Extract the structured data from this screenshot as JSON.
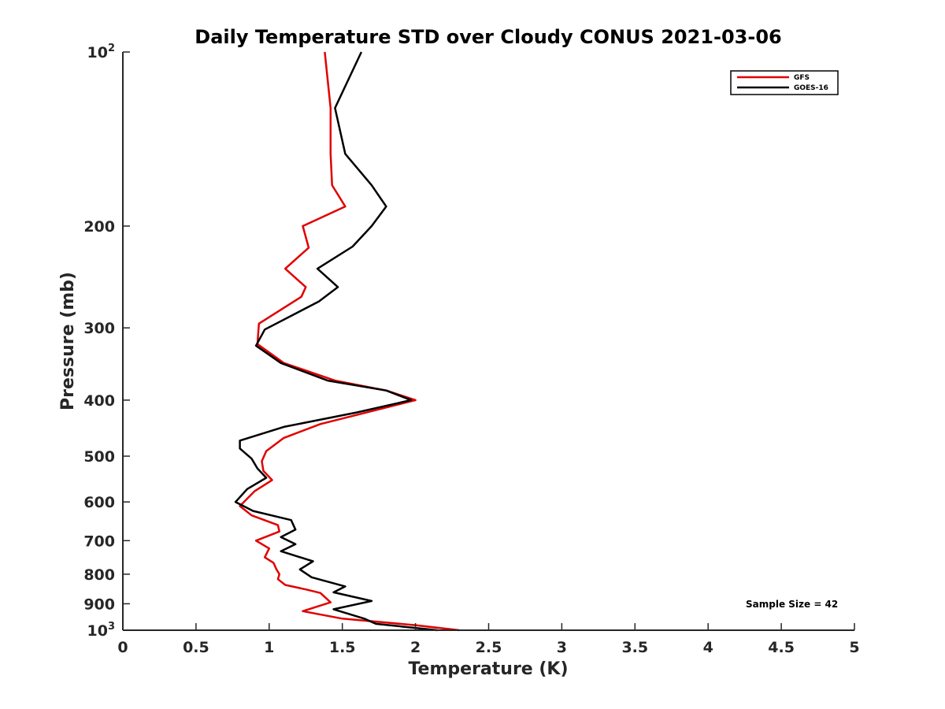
{
  "chart_data": {
    "type": "line",
    "title": "Daily Temperature STD over Cloudy CONUS 2021-03-06",
    "xlabel": "Temperature (K)",
    "ylabel": "Pressure (mb)",
    "xlim": [
      0,
      5
    ],
    "ylim": [
      100,
      1000
    ],
    "yscale": "log",
    "yreversed": true,
    "grid": false,
    "legend_position": "top-right",
    "x_ticks": [
      {
        "value": 0,
        "label": "0"
      },
      {
        "value": 0.5,
        "label": "0.5"
      },
      {
        "value": 1,
        "label": "1"
      },
      {
        "value": 1.5,
        "label": "1.5"
      },
      {
        "value": 2,
        "label": "2"
      },
      {
        "value": 2.5,
        "label": "2.5"
      },
      {
        "value": 3,
        "label": "3"
      },
      {
        "value": 3.5,
        "label": "3.5"
      },
      {
        "value": 4,
        "label": "4"
      },
      {
        "value": 4.5,
        "label": "4.5"
      },
      {
        "value": 5,
        "label": "5"
      }
    ],
    "y_ticks": [
      {
        "value": 100,
        "base": "10",
        "exp": "2"
      },
      {
        "value": 200,
        "label": "200"
      },
      {
        "value": 300,
        "label": "300"
      },
      {
        "value": 400,
        "label": "400"
      },
      {
        "value": 500,
        "label": "500"
      },
      {
        "value": 600,
        "label": "600"
      },
      {
        "value": 700,
        "label": "700"
      },
      {
        "value": 800,
        "label": "800"
      },
      {
        "value": 900,
        "label": "900"
      },
      {
        "value": 1000,
        "base": "10",
        "exp": "3"
      }
    ],
    "series": [
      {
        "name": "GFS",
        "color": "#e00000",
        "points": [
          [
            1.38,
            100
          ],
          [
            1.42,
            125
          ],
          [
            1.42,
            150
          ],
          [
            1.43,
            170
          ],
          [
            1.52,
            185
          ],
          [
            1.23,
            200
          ],
          [
            1.27,
            218
          ],
          [
            1.11,
            237
          ],
          [
            1.25,
            255
          ],
          [
            1.22,
            265
          ],
          [
            0.93,
            295
          ],
          [
            0.92,
            320
          ],
          [
            1.1,
            345
          ],
          [
            1.45,
            370
          ],
          [
            1.8,
            385
          ],
          [
            2.0,
            400
          ],
          [
            1.7,
            418
          ],
          [
            1.35,
            440
          ],
          [
            1.1,
            465
          ],
          [
            0.98,
            490
          ],
          [
            0.95,
            510
          ],
          [
            0.96,
            530
          ],
          [
            1.02,
            550
          ],
          [
            0.9,
            575
          ],
          [
            0.8,
            610
          ],
          [
            0.88,
            633
          ],
          [
            1.06,
            658
          ],
          [
            1.07,
            675
          ],
          [
            0.91,
            700
          ],
          [
            1.0,
            722
          ],
          [
            0.97,
            748
          ],
          [
            1.03,
            765
          ],
          [
            1.05,
            785
          ],
          [
            1.07,
            800
          ],
          [
            1.06,
            816
          ],
          [
            1.11,
            835
          ],
          [
            1.25,
            850
          ],
          [
            1.35,
            862
          ],
          [
            1.42,
            895
          ],
          [
            1.23,
            927
          ],
          [
            1.5,
            955
          ],
          [
            2.0,
            980
          ],
          [
            2.3,
            1000
          ]
        ]
      },
      {
        "name": "GOES-16",
        "color": "#000000",
        "points": [
          [
            1.63,
            100
          ],
          [
            1.45,
            125
          ],
          [
            1.52,
            150
          ],
          [
            1.7,
            170
          ],
          [
            1.8,
            185
          ],
          [
            1.7,
            200
          ],
          [
            1.57,
            217
          ],
          [
            1.33,
            237
          ],
          [
            1.47,
            255
          ],
          [
            1.34,
            270
          ],
          [
            0.97,
            302
          ],
          [
            0.91,
            322
          ],
          [
            1.08,
            345
          ],
          [
            1.4,
            370
          ],
          [
            1.8,
            385
          ],
          [
            1.97,
            400
          ],
          [
            1.6,
            420
          ],
          [
            1.1,
            445
          ],
          [
            0.8,
            470
          ],
          [
            0.8,
            485
          ],
          [
            0.88,
            505
          ],
          [
            0.92,
            525
          ],
          [
            0.98,
            545
          ],
          [
            0.85,
            570
          ],
          [
            0.77,
            600
          ],
          [
            0.89,
            622
          ],
          [
            1.15,
            645
          ],
          [
            1.18,
            670
          ],
          [
            1.08,
            690
          ],
          [
            1.18,
            710
          ],
          [
            1.08,
            730
          ],
          [
            1.3,
            760
          ],
          [
            1.21,
            785
          ],
          [
            1.29,
            810
          ],
          [
            1.52,
            840
          ],
          [
            1.44,
            860
          ],
          [
            1.7,
            890
          ],
          [
            1.44,
            920
          ],
          [
            1.65,
            955
          ],
          [
            1.73,
            975
          ],
          [
            2.15,
            1000
          ]
        ]
      }
    ],
    "annotations": [
      {
        "text": "Sample Size = 42"
      }
    ]
  }
}
